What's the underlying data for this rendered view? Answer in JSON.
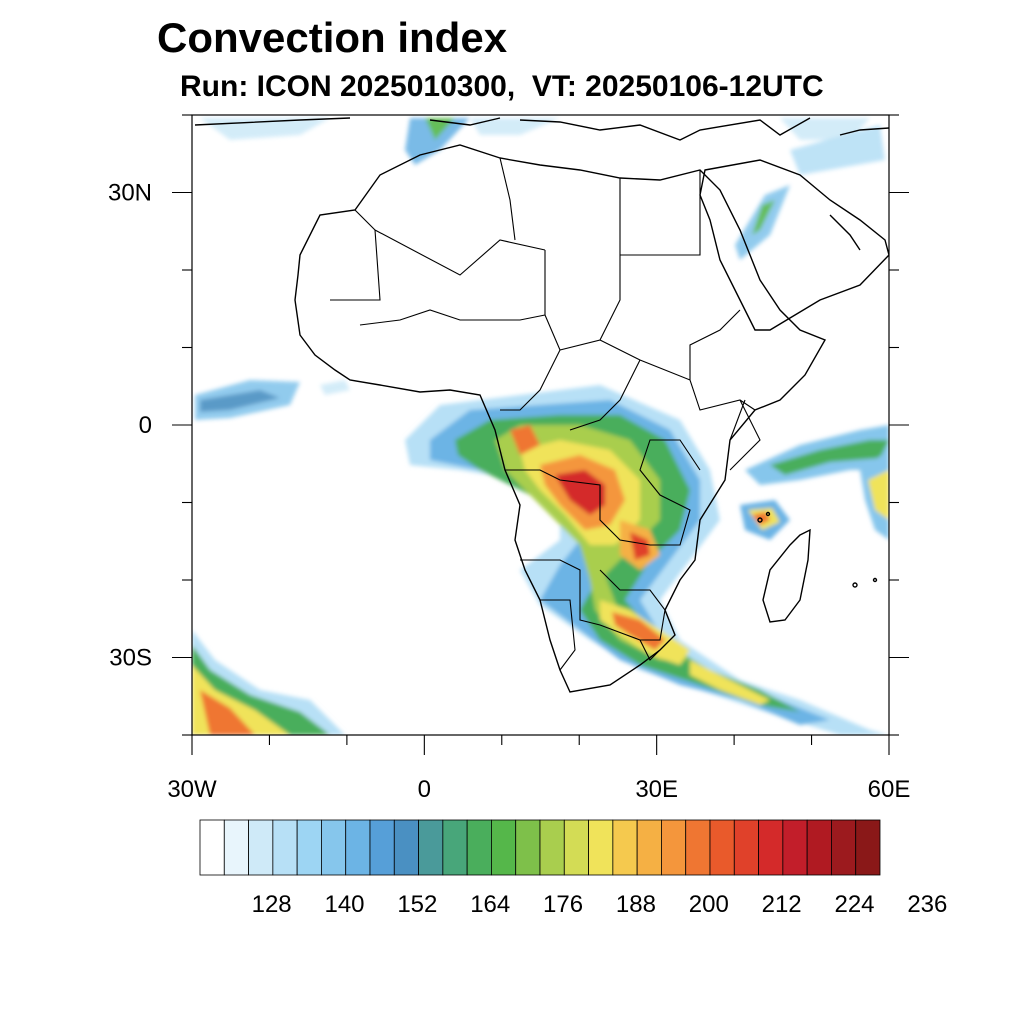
{
  "title": "Convection index",
  "subtitle": "Run: ICON 2025010300,  VT: 20250106-12UTC",
  "map": {
    "lon_range": [
      -30,
      60
    ],
    "lat_range": [
      -40,
      40
    ],
    "lat_ticks": [
      {
        "value": 30,
        "label": "30N"
      },
      {
        "value": 0,
        "label": "0"
      },
      {
        "value": -30,
        "label": "30S"
      }
    ],
    "lon_ticks": [
      {
        "value": -30,
        "label": "30W"
      },
      {
        "value": 0,
        "label": "0"
      },
      {
        "value": 30,
        "label": "30E"
      },
      {
        "value": 60,
        "label": "60E"
      }
    ],
    "minor_lat_ticks": [
      -40,
      -20,
      -10,
      10,
      20,
      40
    ],
    "minor_lon_ticks": [
      -20,
      -10,
      10,
      20,
      40,
      50
    ]
  },
  "colorbar": {
    "colors": [
      "#ffffff",
      "#e8f5fc",
      "#cfeaf8",
      "#b7e0f6",
      "#9dd5f3",
      "#86c6ec",
      "#6cb4e5",
      "#569fd8",
      "#4a90c2",
      "#4a9a9a",
      "#48a67a",
      "#4aae5c",
      "#55b74a",
      "#7ec04a",
      "#a9ce4e",
      "#d3dc55",
      "#f0e35a",
      "#f5c94e",
      "#f5b044",
      "#f4963c",
      "#ef7632",
      "#e95a2b",
      "#e0412a",
      "#d42a2a",
      "#c21e2a",
      "#b01a22",
      "#9c1a1e",
      "#8a1818"
    ],
    "labels": [
      "128",
      "140",
      "152",
      "164",
      "176",
      "188",
      "200",
      "212",
      "224",
      "236"
    ]
  }
}
